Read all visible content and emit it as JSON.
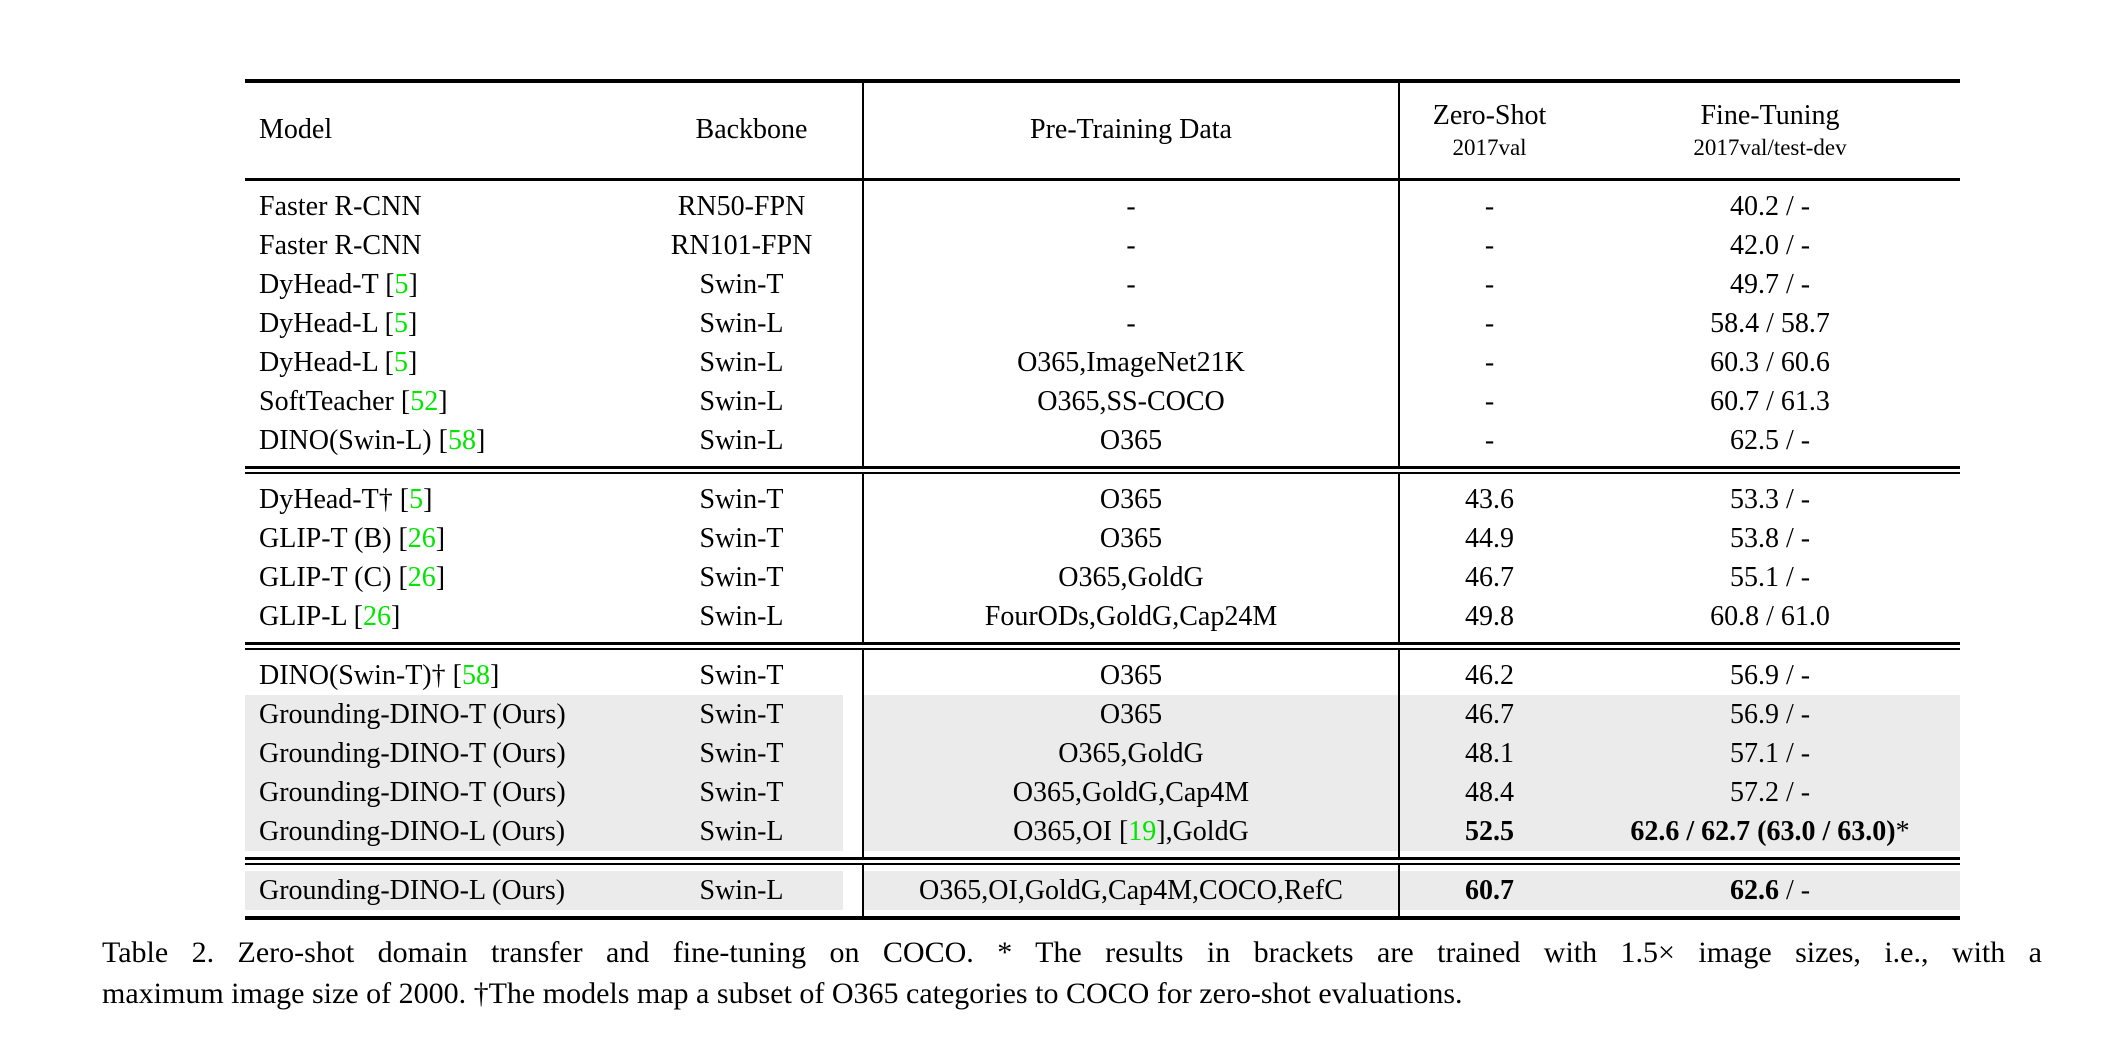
{
  "colors": {
    "citation_green": "#00e600",
    "row_highlight": "#ebebeb"
  },
  "table": {
    "header": {
      "model": "Model",
      "backbone": "Backbone",
      "pretraining": "Pre-Training Data",
      "zero_shot_title": "Zero-Shot",
      "zero_shot_sub": "2017val",
      "fine_tuning_title": "Fine-Tuning",
      "fine_tuning_sub": "2017val/test-dev"
    },
    "rows": [
      {
        "m_pre": "Faster R-CNN",
        "m_cite": "",
        "m_post": "",
        "backbone": "RN50-FPN",
        "p_pre": "-",
        "p_cite": "",
        "p_post": "",
        "zs_b": "",
        "zs_n": "-",
        "ft_b": "",
        "ft_n": "40.2 / -"
      },
      {
        "m_pre": "Faster R-CNN",
        "m_cite": "",
        "m_post": "",
        "backbone": "RN101-FPN",
        "p_pre": "-",
        "p_cite": "",
        "p_post": "",
        "zs_b": "",
        "zs_n": "-",
        "ft_b": "",
        "ft_n": "42.0 / -"
      },
      {
        "m_pre": "DyHead-T [",
        "m_cite": "5",
        "m_post": "]",
        "backbone": "Swin-T",
        "p_pre": "-",
        "p_cite": "",
        "p_post": "",
        "zs_b": "",
        "zs_n": "-",
        "ft_b": "",
        "ft_n": "49.7 / -"
      },
      {
        "m_pre": "DyHead-L [",
        "m_cite": "5",
        "m_post": "]",
        "backbone": "Swin-L",
        "p_pre": "-",
        "p_cite": "",
        "p_post": "",
        "zs_b": "",
        "zs_n": "-",
        "ft_b": "",
        "ft_n": "58.4 / 58.7"
      },
      {
        "m_pre": "DyHead-L [",
        "m_cite": "5",
        "m_post": "]",
        "backbone": "Swin-L",
        "p_pre": "O365,ImageNet21K",
        "p_cite": "",
        "p_post": "",
        "zs_b": "",
        "zs_n": "-",
        "ft_b": "",
        "ft_n": "60.3 / 60.6"
      },
      {
        "m_pre": "SoftTeacher [",
        "m_cite": "52",
        "m_post": "]",
        "backbone": "Swin-L",
        "p_pre": "O365,SS-COCO",
        "p_cite": "",
        "p_post": "",
        "zs_b": "",
        "zs_n": "-",
        "ft_b": "",
        "ft_n": "60.7 / 61.3"
      },
      {
        "m_pre": "DINO(Swin-L) [",
        "m_cite": "58",
        "m_post": "]",
        "backbone": "Swin-L",
        "p_pre": "O365",
        "p_cite": "",
        "p_post": "",
        "zs_b": "",
        "zs_n": "-",
        "ft_b": "",
        "ft_n": "62.5 / -"
      },
      {
        "m_pre": "DyHead-T† [",
        "m_cite": "5",
        "m_post": "]",
        "backbone": "Swin-T",
        "p_pre": "O365",
        "p_cite": "",
        "p_post": "",
        "zs_b": "",
        "zs_n": "43.6",
        "ft_b": "",
        "ft_n": "53.3 / -"
      },
      {
        "m_pre": "GLIP-T (B) [",
        "m_cite": "26",
        "m_post": "]",
        "backbone": "Swin-T",
        "p_pre": "O365",
        "p_cite": "",
        "p_post": "",
        "zs_b": "",
        "zs_n": "44.9",
        "ft_b": "",
        "ft_n": "53.8 / -"
      },
      {
        "m_pre": "GLIP-T (C) [",
        "m_cite": "26",
        "m_post": "]",
        "backbone": "Swin-T",
        "p_pre": "O365,GoldG",
        "p_cite": "",
        "p_post": "",
        "zs_b": "",
        "zs_n": "46.7",
        "ft_b": "",
        "ft_n": "55.1 / -"
      },
      {
        "m_pre": "GLIP-L [",
        "m_cite": "26",
        "m_post": "]",
        "backbone": "Swin-L",
        "p_pre": "FourODs,GoldG,Cap24M",
        "p_cite": "",
        "p_post": "",
        "zs_b": "",
        "zs_n": "49.8",
        "ft_b": "",
        "ft_n": "60.8 / 61.0"
      },
      {
        "m_pre": "DINO(Swin-T)† [",
        "m_cite": "58",
        "m_post": "]",
        "backbone": "Swin-T",
        "p_pre": "O365",
        "p_cite": "",
        "p_post": "",
        "zs_b": "",
        "zs_n": "46.2",
        "ft_b": "",
        "ft_n": "56.9 / -"
      },
      {
        "m_pre": "Grounding-DINO-T (Ours)",
        "m_cite": "",
        "m_post": "",
        "backbone": "Swin-T",
        "p_pre": "O365",
        "p_cite": "",
        "p_post": "",
        "zs_b": "",
        "zs_n": "46.7",
        "ft_b": "",
        "ft_n": "56.9 / -"
      },
      {
        "m_pre": "Grounding-DINO-T (Ours)",
        "m_cite": "",
        "m_post": "",
        "backbone": "Swin-T",
        "p_pre": "O365,GoldG",
        "p_cite": "",
        "p_post": "",
        "zs_b": "",
        "zs_n": "48.1",
        "ft_b": "",
        "ft_n": "57.1 / -"
      },
      {
        "m_pre": "Grounding-DINO-T (Ours)",
        "m_cite": "",
        "m_post": "",
        "backbone": "Swin-T",
        "p_pre": "O365,GoldG,Cap4M",
        "p_cite": "",
        "p_post": "",
        "zs_b": "",
        "zs_n": "48.4",
        "ft_b": "",
        "ft_n": "57.2 / -"
      },
      {
        "m_pre": "Grounding-DINO-L (Ours)",
        "m_cite": "",
        "m_post": "",
        "backbone": "Swin-L",
        "p_pre": "O365,OI [",
        "p_cite": "19",
        "p_post": "],GoldG",
        "zs_b": "52.5",
        "zs_n": "",
        "ft_b": "62.6 / 62.7 (63.0 / 63.0)",
        "ft_n": "*"
      },
      {
        "m_pre": "Grounding-DINO-L (Ours)",
        "m_cite": "",
        "m_post": "",
        "backbone": "Swin-L",
        "p_pre": "O365,OI,GoldG,Cap4M,COCO,RefC",
        "p_cite": "",
        "p_post": "",
        "zs_b": "60.7",
        "zs_n": "",
        "ft_b": "62.6",
        "ft_n": " / -"
      }
    ]
  },
  "caption": {
    "line1": "Table 2.  Zero-shot domain transfer and fine-tuning on COCO. * The results in brackets are trained with 1.5× image sizes, i.e., with a",
    "line2": "maximum image size of 2000. †The models map a subset of O365 categories to COCO for zero-shot evaluations."
  }
}
